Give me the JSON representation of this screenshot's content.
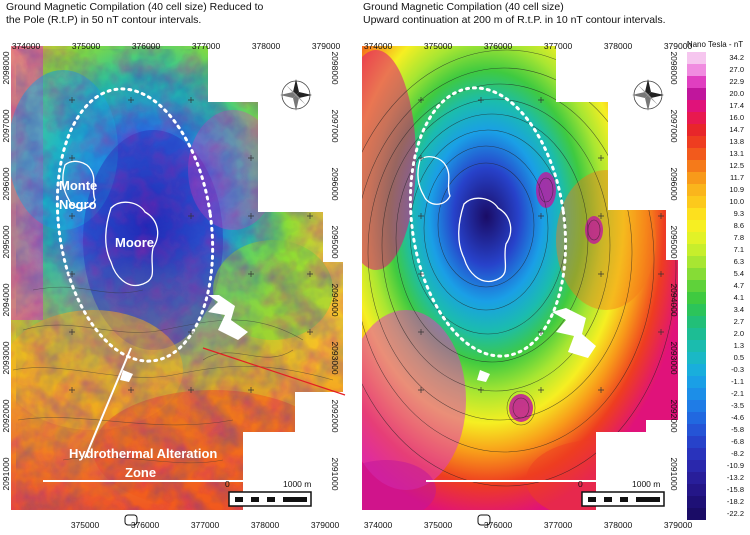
{
  "left_map": {
    "title": "Ground Magnetic Compilation (40 cell size) Reduced to\nthe Pole (R.t.P) in 50 nT contour intervals.",
    "x_ticks_top": [
      "374000",
      "375000",
      "376000",
      "377000",
      "378000",
      "379000"
    ],
    "x_ticks_bottom": [
      "375000",
      "376000",
      "377000",
      "378000",
      "379000"
    ],
    "y_ticks_left": [
      "2098000",
      "2097000",
      "2096000",
      "2095000",
      "2094000",
      "2093000",
      "2092000",
      "2091000"
    ],
    "y_ticks_right": [
      "2098000",
      "2097000",
      "2096000",
      "2095000",
      "2094000",
      "2093000",
      "2092000",
      "2091000"
    ],
    "labels": {
      "monte_negro": "Monte\nNegro",
      "moore": "Moore",
      "alteration_zone": "Hydrothermal Alteration\nZone"
    },
    "scale_label": "1000 m",
    "scale_zero": "0"
  },
  "right_map": {
    "title": "Ground Magnetic Compilation (40 cell size)\nUpward continuation at 200 m of R.t.P. in 10 nT contour intervals.",
    "x_ticks_top": [
      "374000",
      "375000",
      "376000",
      "377000",
      "378000",
      "379000"
    ],
    "x_ticks_bottom": [
      "374000",
      "375000",
      "376000",
      "377000",
      "378000",
      "379000"
    ],
    "y_ticks_right": [
      "2098000",
      "2097000",
      "2096000",
      "2095000",
      "2094000",
      "2093000",
      "2092000",
      "2091000"
    ],
    "scale_label": "1000 m",
    "scale_zero": "0"
  },
  "legend": {
    "title": "Nano Tesla - nT",
    "values": [
      "34.2",
      "27.0",
      "22.9",
      "20.0",
      "17.4",
      "16.0",
      "14.7",
      "13.8",
      "13.1",
      "12.5",
      "11.7",
      "10.9",
      "10.0",
      "9.3",
      "8.6",
      "7.8",
      "7.1",
      "6.3",
      "5.4",
      "4.7",
      "4.1",
      "3.4",
      "2.7",
      "2.0",
      "1.3",
      "0.5",
      "-0.3",
      "-1.1",
      "-2.1",
      "-3.5",
      "-4.6",
      "-5.8",
      "-6.8",
      "-8.2",
      "-10.9",
      "-13.2",
      "-15.8",
      "-18.2",
      "-22.2"
    ],
    "colors": [
      "#f6c6ef",
      "#f08ce0",
      "#e03fc0",
      "#c0169c",
      "#e0127a",
      "#e8194f",
      "#e8262a",
      "#ee3d20",
      "#f25a1c",
      "#f57a1a",
      "#f89a1a",
      "#fab51c",
      "#fcc91c",
      "#fde01e",
      "#f6ef22",
      "#e2f227",
      "#c7ee2c",
      "#a8e632",
      "#86dc36",
      "#5fd23a",
      "#3fca40",
      "#2cc45a",
      "#22bf78",
      "#1dbd94",
      "#1bbcae",
      "#1ab8c6",
      "#19aedc",
      "#1a9fe6",
      "#1c8ee8",
      "#1f7ce6",
      "#2168e0",
      "#2554d6",
      "#2742ca",
      "#2933bc",
      "#2a28ac",
      "#281e9a",
      "#241688",
      "#1e1076",
      "#1a0c66"
    ]
  },
  "compass": {
    "north_label": "N"
  }
}
